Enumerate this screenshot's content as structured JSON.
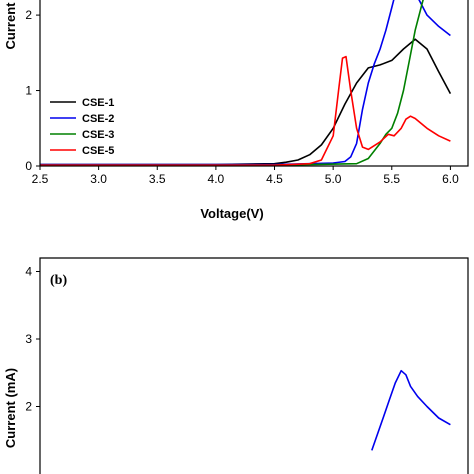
{
  "chart_data": [
    {
      "type": "line",
      "panel": "a",
      "xlabel": "Voltage(V)",
      "ylabel": "Current",
      "xlim": [
        2.5,
        6.15
      ],
      "ylim": [
        0,
        2.2
      ],
      "x_ticks": [
        "2.5",
        "3.0",
        "3.5",
        "4.0",
        "4.5",
        "5.0",
        "5.5",
        "6.0"
      ],
      "y_ticks": [
        "0",
        "1",
        "2"
      ],
      "grid": false,
      "legend": "bottom-left",
      "series": [
        {
          "name": "CSE-1",
          "color": "#000000",
          "x": [
            2.5,
            4.0,
            4.5,
            4.6,
            4.7,
            4.8,
            4.9,
            5.0,
            5.1,
            5.2,
            5.3,
            5.4,
            5.5,
            5.6,
            5.7,
            5.8,
            5.9,
            6.0
          ],
          "y": [
            0.02,
            0.02,
            0.03,
            0.05,
            0.08,
            0.15,
            0.28,
            0.5,
            0.82,
            1.1,
            1.3,
            1.34,
            1.4,
            1.55,
            1.68,
            1.55,
            1.25,
            0.96
          ]
        },
        {
          "name": "CSE-2",
          "color": "#0000ee",
          "x": [
            2.5,
            4.5,
            5.0,
            5.1,
            5.15,
            5.2,
            5.25,
            5.3,
            5.35,
            5.4,
            5.45,
            5.5,
            5.55,
            5.6,
            5.65,
            5.7,
            5.75,
            5.8,
            5.9,
            6.0
          ],
          "y": [
            0.02,
            0.02,
            0.04,
            0.06,
            0.12,
            0.3,
            0.75,
            1.1,
            1.35,
            1.55,
            1.8,
            2.1,
            2.4,
            2.53,
            2.45,
            2.3,
            2.15,
            2.0,
            1.85,
            1.73
          ]
        },
        {
          "name": "CSE-3",
          "color": "#008000",
          "x": [
            2.5,
            4.5,
            5.2,
            5.3,
            5.4,
            5.45,
            5.5,
            5.55,
            5.6,
            5.65,
            5.7,
            5.75,
            5.8
          ],
          "y": [
            0.01,
            0.01,
            0.03,
            0.1,
            0.3,
            0.42,
            0.5,
            0.7,
            1.0,
            1.4,
            1.8,
            2.1,
            2.4
          ]
        },
        {
          "name": "CSE-5",
          "color": "#ff0000",
          "x": [
            2.5,
            4.5,
            4.8,
            4.9,
            5.0,
            5.05,
            5.08,
            5.11,
            5.15,
            5.2,
            5.25,
            5.3,
            5.4,
            5.47,
            5.52,
            5.58,
            5.62,
            5.66,
            5.7,
            5.8,
            5.9,
            6.0
          ],
          "y": [
            0.01,
            0.01,
            0.03,
            0.08,
            0.4,
            1.05,
            1.43,
            1.45,
            1.0,
            0.5,
            0.25,
            0.22,
            0.32,
            0.42,
            0.4,
            0.5,
            0.62,
            0.66,
            0.63,
            0.5,
            0.4,
            0.33
          ]
        }
      ]
    },
    {
      "type": "line",
      "panel": "b",
      "panel_label": "(b)",
      "ylabel": "Current (mA)",
      "xlim": [
        2.5,
        6.15
      ],
      "ylim": [
        1,
        4.2
      ],
      "y_ticks": [
        "2",
        "3",
        "4"
      ],
      "grid": false,
      "series": [
        {
          "color": "#0000ee",
          "x": [
            5.33,
            5.38,
            5.43,
            5.48,
            5.53,
            5.58,
            5.62,
            5.66,
            5.72,
            5.8,
            5.9,
            6.0
          ],
          "y": [
            1.35,
            1.6,
            1.85,
            2.1,
            2.35,
            2.53,
            2.47,
            2.3,
            2.15,
            2.0,
            1.83,
            1.73
          ]
        }
      ]
    }
  ]
}
